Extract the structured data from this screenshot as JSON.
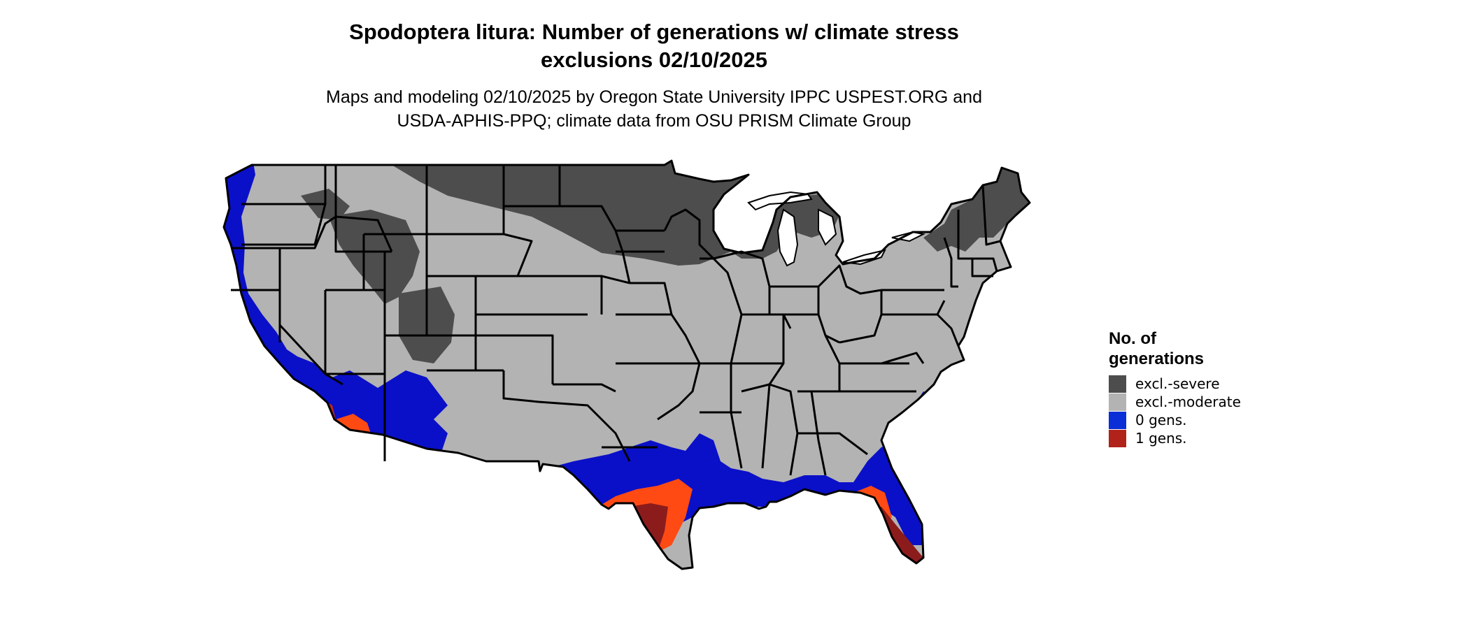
{
  "title": {
    "line1": "Spodoptera litura: Number of generations w/ climate stress",
    "line2": "exclusions 02/10/2025"
  },
  "subtitle": {
    "line1": "Maps and modeling 02/10/2025 by Oregon State University IPPC USPEST.ORG and",
    "line2": "USDA-APHIS-PPQ; climate data from OSU PRISM Climate Group"
  },
  "legend": {
    "title_line1": "No. of",
    "title_line2": "generations",
    "items": [
      {
        "label": "excl.-severe",
        "color": "#4d4d4d"
      },
      {
        "label": "excl.-moderate",
        "color": "#b3b3b3"
      },
      {
        "label": "0 gens.",
        "color": "#0a2fd6"
      },
      {
        "label": "1 gens.",
        "color": "#b0221a"
      }
    ]
  },
  "colors": {
    "severe": "#4d4d4d",
    "moderate": "#b3b3b3",
    "zero_gens": "#0a10c8",
    "one_gens_dark": "#8c1c1c",
    "one_gens_mid": "#c0281c",
    "one_gens_bright": "#ff4a14",
    "state_border": "#000000",
    "lakes": "#ffffff"
  }
}
